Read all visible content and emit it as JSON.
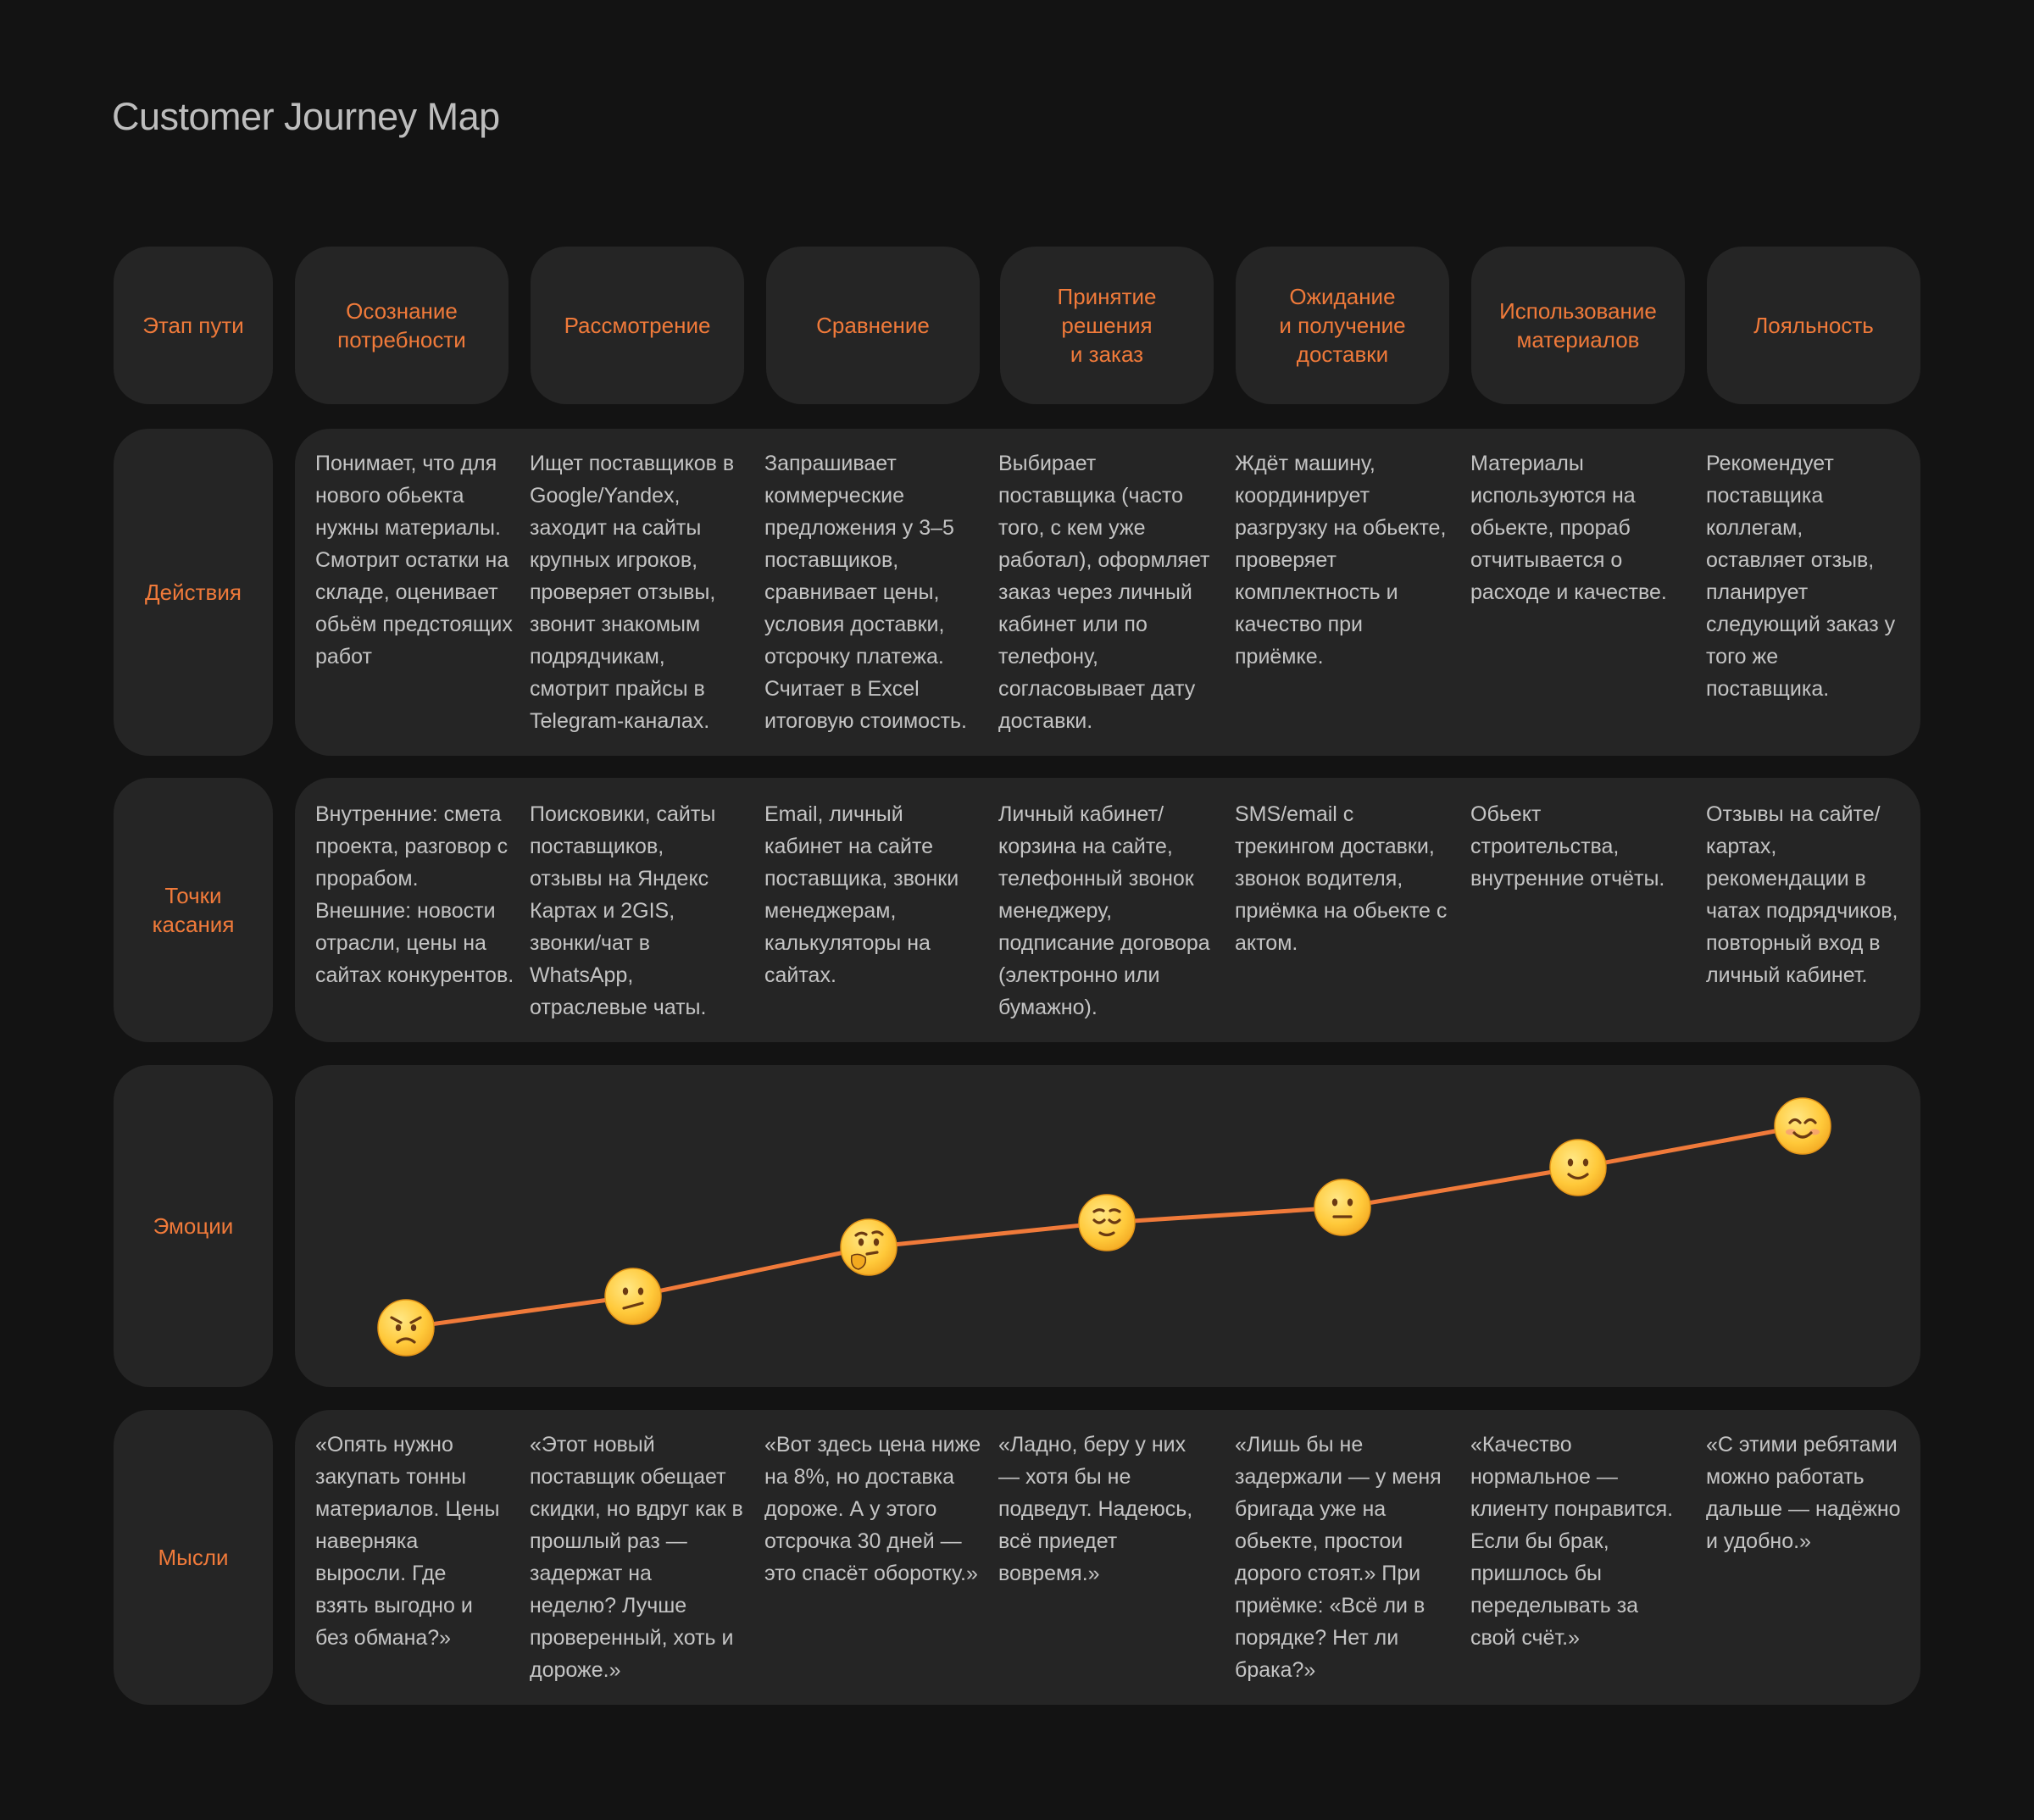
{
  "title": "Customer Journey Map",
  "colors": {
    "background": "#131313",
    "card": "#252525",
    "accent": "#f07a3a",
    "text": "#c4c4c4"
  },
  "row_labels": {
    "stage": "Этап пути",
    "actions": "Действия",
    "touchpoints": "Точки\nкасания",
    "emotions": "Эмоции",
    "thoughts": "Мысли"
  },
  "stages": [
    {
      "name": "Осознание\nпотребности",
      "action": "Понимает, что для нового обьекта нужны материалы. Смотрит остатки на складе, оценивает обьём предстоящих работ",
      "touchpoint": "Внутренние: смета проекта, разговор с прорабом. Внешние: новости отрасли, цены на сайтах конкурентов.",
      "emotion_icon": "angry-face-icon",
      "emotion_level": 0,
      "thought": "«Опять нужно закупать тонны материалов. Цены наверняка выросли. Где взять выгодно и без обмана?»"
    },
    {
      "name": "Рассмотрение",
      "action": "Ищет поставщиков в Google/Yandex, заходит на сайты крупных игроков, проверяет отзывы, звонит знакомым подрядчикам, смотрит прайсы в Telegram-каналах.",
      "touchpoint": "Поисковики, сайты поставщиков, отзывы на Яндекс Картах и 2GIS, звонки/чат в WhatsApp, отраслевые чаты.",
      "emotion_icon": "confused-face-icon",
      "emotion_level": 1,
      "thought": "«Этот новый поставщик обещает скидки, но вдруг как в прошлый раз — задержат на неделю? Лучше проверенный, хоть и дороже.»"
    },
    {
      "name": "Сравнение",
      "action": "Запрашивает коммерческие предложения у 3–5 поставщиков, сравнивает цены, условия доставки, отсрочку платежа. Считает в Excel итоговую стоимость.",
      "touchpoint": "Email, личный кабинет на сайте поставщика, звонки менеджерам, калькуляторы на сайтах.",
      "emotion_icon": "thinking-face-icon",
      "emotion_level": 2,
      "thought": "«Вот здесь цена ниже на 8%, но доставка дороже. А у этого отсрочка 30 дней — это спасёт оборотку.»"
    },
    {
      "name": "Принятие\nрешения\nи заказ",
      "action": "Выбирает поставщика (часто того, с кем уже работал), оформляет заказ через личный кабинет или по телефону, согласовывает дату доставки.",
      "touchpoint": "Личный кабинет/корзина на сайте, телефонный звонок менеджеру, подписание договора (электронно или бумажно).",
      "emotion_icon": "relieved-face-icon",
      "emotion_level": 3,
      "thought": "«Ладно, беру у них — хотя бы не подведут. Надеюсь, всё приедет вовремя.»"
    },
    {
      "name": "Ожидание\nи получение\nдоставки",
      "action": "Ждёт машину, координирует разгрузку на обьекте, проверяет комплектность и качество при приёмке.",
      "touchpoint": "SMS/email с трекингом доставки, звонок водителя, приёмка на обьекте с актом.",
      "emotion_icon": "neutral-face-icon",
      "emotion_level": 4,
      "thought": "«Лишь бы не задержали — у меня бригада уже на обьекте, простои дорого стоят.» При приёмке: «Всё ли в порядке? Нет ли брака?»"
    },
    {
      "name": "Использование\nматериалов",
      "action": "Материалы используются на обьекте, прораб отчитывается о расходе и качестве.",
      "touchpoint": "Обьект строительства, внутренние отчёты.",
      "emotion_icon": "slightly-smiling-face-icon",
      "emotion_level": 5,
      "thought": "«Качество нормальное — клиенту понравится. Если бы брак, пришлось бы переделывать за свой счёт.»"
    },
    {
      "name": "Лояльность",
      "action": "Рекомендует поставщика коллегам, оставляет отзыв, планирует следующий заказ у того же поставщика.",
      "touchpoint": "Отзывы на сайте/картах, рекомендации в чатах подрядчиков, повторный вход в личный кабинет.",
      "emotion_icon": "smiling-face-icon",
      "emotion_level": 6,
      "thought": "«С этими ребятами можно работать дальше — надёжно и удобно.»"
    }
  ]
}
